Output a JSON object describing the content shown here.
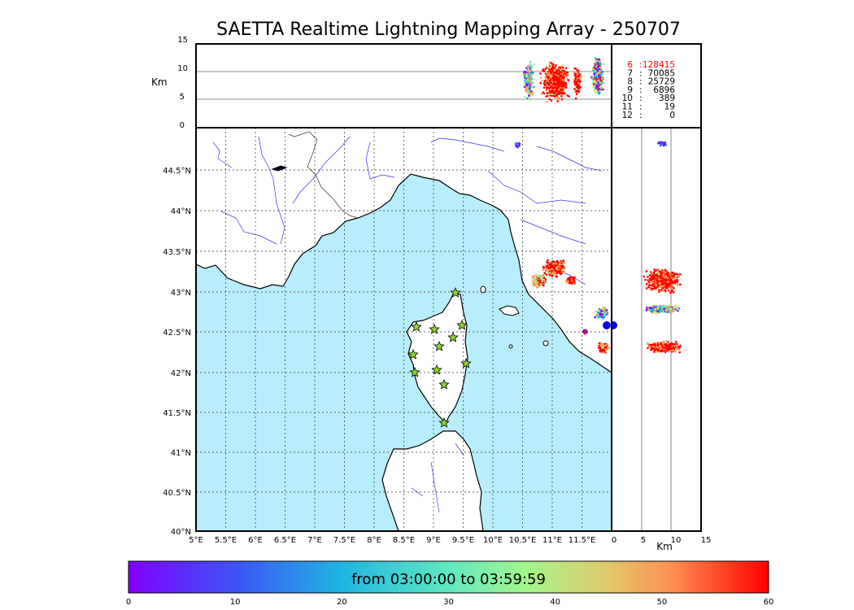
{
  "title": "SAETTA Realtime Lightning Mapping Array - 250707",
  "altitude_panel": {
    "ylabel": "Km",
    "yticks": [
      "15",
      "10",
      "5",
      "0"
    ],
    "counts": [
      {
        "label": "6",
        "value": "128415",
        "highlight": true
      },
      {
        "label": "7",
        "value": "70085",
        "highlight": false
      },
      {
        "label": "8",
        "value": "25729",
        "highlight": false
      },
      {
        "label": "9",
        "value": "6896",
        "highlight": false
      },
      {
        "label": "10",
        "value": "389",
        "highlight": false
      },
      {
        "label": "11",
        "value": "19",
        "highlight": false
      },
      {
        "label": "12",
        "value": "0",
        "highlight": false
      }
    ]
  },
  "map": {
    "lon_ticks": [
      "5°E",
      "5.5°E",
      "6°E",
      "6.5°E",
      "7°E",
      "7.5°E",
      "8°E",
      "8.5°E",
      "9°E",
      "9.5°E",
      "10°E",
      "10.5°E",
      "11°E",
      "11.5°E"
    ],
    "lat_ticks": [
      "44.5°N",
      "44°N",
      "43.5°N",
      "43°N",
      "42.5°N",
      "42°N",
      "41.5°N",
      "41°N",
      "40.5°N",
      "40°N"
    ],
    "sea_color": "#b8edfb",
    "stations": 13
  },
  "side_panel": {
    "xlabel": "Km",
    "xticks": [
      "0",
      "5",
      "10",
      "15"
    ]
  },
  "colorbar": {
    "label": "from 03:00:00 to 03:59:59",
    "ticks": [
      "0",
      "10",
      "20",
      "30",
      "40",
      "50",
      "60"
    ]
  },
  "colors": {
    "violet": "#7f00ff",
    "blue": "#1e96e8",
    "cyan": "#3fd6d0",
    "green": "#98f892",
    "yellow": "#d9d56a",
    "orange": "#ff9a55",
    "red": "#ff0000",
    "station": "#8dd62e"
  }
}
